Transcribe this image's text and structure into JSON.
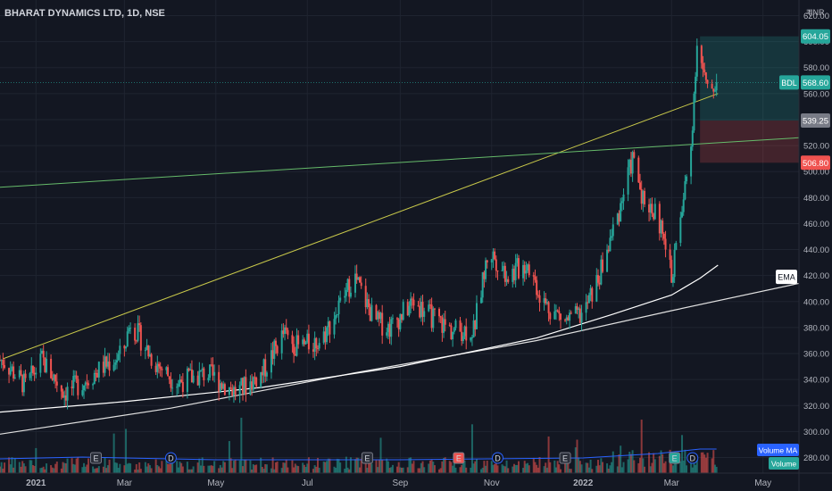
{
  "header": {
    "title": "BHARAT DYNAMICS LTD, 1D, NSE"
  },
  "currency_label": "INR",
  "currency_icon": "rupee-icon",
  "colors": {
    "background": "#131722",
    "grid": "#1f2430",
    "text": "#b2b5be",
    "up": "#26a69a",
    "down": "#ef5350",
    "ema": "#ffffff",
    "trend_yellow": "#c8c84a",
    "trend_green": "#66bb6a",
    "profit_zone": "rgba(38,166,154,0.22)",
    "loss_zone": "rgba(239,83,80,0.22)",
    "volume_ma": "#2962ff"
  },
  "price_labels": {
    "target": "604.05",
    "symbol": "BDL",
    "last": "568.60",
    "entry": "539.25",
    "stop": "506.80",
    "ema": "EMA",
    "volume_ma": "Volume MA",
    "volume": "Volume"
  },
  "chart_data": {
    "type": "candlestick",
    "title": "BHARAT DYNAMICS LTD, 1D, NSE",
    "y_axis": {
      "ticks": [
        280,
        300,
        320,
        340,
        360,
        380,
        400,
        420,
        440,
        460,
        480,
        500,
        520,
        540,
        560,
        580,
        600,
        620
      ],
      "ylim": [
        268,
        632
      ],
      "unit": "INR"
    },
    "x_axis": {
      "ticks": [
        "2021",
        "Mar",
        "May",
        "Jul",
        "Sep",
        "Nov",
        "2022",
        "Mar",
        "May"
      ],
      "xlim": [
        "2020-12-08",
        "2022-05-25"
      ]
    },
    "price_path": [
      [
        "2020-12-10",
        355
      ],
      [
        "2020-12-25",
        335
      ],
      [
        "2021-01-05",
        355
      ],
      [
        "2021-01-20",
        330
      ],
      [
        "2021-02-01",
        338
      ],
      [
        "2021-02-15",
        350
      ],
      [
        "2021-02-28",
        360
      ],
      [
        "2021-03-05",
        385
      ],
      [
        "2021-03-20",
        355
      ],
      [
        "2021-04-05",
        338
      ],
      [
        "2021-04-25",
        345
      ],
      [
        "2021-05-15",
        330
      ],
      [
        "2021-06-01",
        345
      ],
      [
        "2021-06-15",
        375
      ],
      [
        "2021-06-25",
        365
      ],
      [
        "2021-07-10",
        370
      ],
      [
        "2021-07-22",
        395
      ],
      [
        "2021-08-01",
        420
      ],
      [
        "2021-08-15",
        385
      ],
      [
        "2021-08-25",
        380
      ],
      [
        "2021-09-10",
        400
      ],
      [
        "2021-09-20",
        390
      ],
      [
        "2021-10-05",
        378
      ],
      [
        "2021-10-20",
        378
      ],
      [
        "2021-10-30",
        440
      ],
      [
        "2021-11-12",
        420
      ],
      [
        "2021-11-25",
        430
      ],
      [
        "2021-12-05",
        400
      ],
      [
        "2021-12-20",
        385
      ],
      [
        "2022-01-01",
        390
      ],
      [
        "2022-01-12",
        420
      ],
      [
        "2022-01-25",
        470
      ],
      [
        "2022-02-03",
        510
      ],
      [
        "2022-02-10",
        480
      ],
      [
        "2022-02-20",
        465
      ],
      [
        "2022-03-01",
        420
      ],
      [
        "2022-03-08",
        470
      ],
      [
        "2022-03-14",
        520
      ],
      [
        "2022-03-18",
        600
      ],
      [
        "2022-03-25",
        560
      ],
      [
        "2022-03-31",
        568.6
      ]
    ],
    "ema_200": [
      [
        "2020-12-08",
        315
      ],
      [
        "2021-03-01",
        323
      ],
      [
        "2021-06-01",
        334
      ],
      [
        "2021-09-01",
        350
      ],
      [
        "2021-12-01",
        372
      ],
      [
        "2022-01-20",
        390
      ],
      [
        "2022-03-01",
        405
      ],
      [
        "2022-03-20",
        418
      ],
      [
        "2022-04-01",
        428
      ]
    ],
    "long_ma": [
      [
        "2020-12-08",
        298
      ],
      [
        "2021-04-01",
        318
      ],
      [
        "2021-08-01",
        345
      ],
      [
        "2021-12-01",
        370
      ],
      [
        "2022-03-01",
        393
      ],
      [
        "2022-05-25",
        414
      ]
    ],
    "trendlines": [
      {
        "name": "rising-resistance",
        "points": [
          [
            "2020-12-10",
            356
          ],
          [
            "2022-04-01",
            560
          ]
        ]
      },
      {
        "name": "horizontal-resistance",
        "points": [
          [
            "2020-12-08",
            488
          ],
          [
            "2022-05-25",
            526
          ]
        ]
      }
    ],
    "long_position": {
      "entry": 539.25,
      "target": 604.05,
      "stop": 506.8,
      "start": "2022-03-20",
      "end": "2022-05-25"
    },
    "last_price": 568.6,
    "event_markers": [
      {
        "date": "2021-02-10",
        "label": "E",
        "kind": "earnings"
      },
      {
        "date": "2021-04-01",
        "label": "D",
        "kind": "dividend"
      },
      {
        "date": "2021-08-10",
        "label": "E",
        "kind": "earnings"
      },
      {
        "date": "2021-10-10",
        "label": "E",
        "kind": "earnings-red"
      },
      {
        "date": "2021-11-05",
        "label": "D",
        "kind": "dividend"
      },
      {
        "date": "2021-12-20",
        "label": "E",
        "kind": "earnings"
      },
      {
        "date": "2022-03-03",
        "label": "E",
        "kind": "earnings-green"
      },
      {
        "date": "2022-03-15",
        "label": "D",
        "kind": "dividend"
      }
    ]
  }
}
